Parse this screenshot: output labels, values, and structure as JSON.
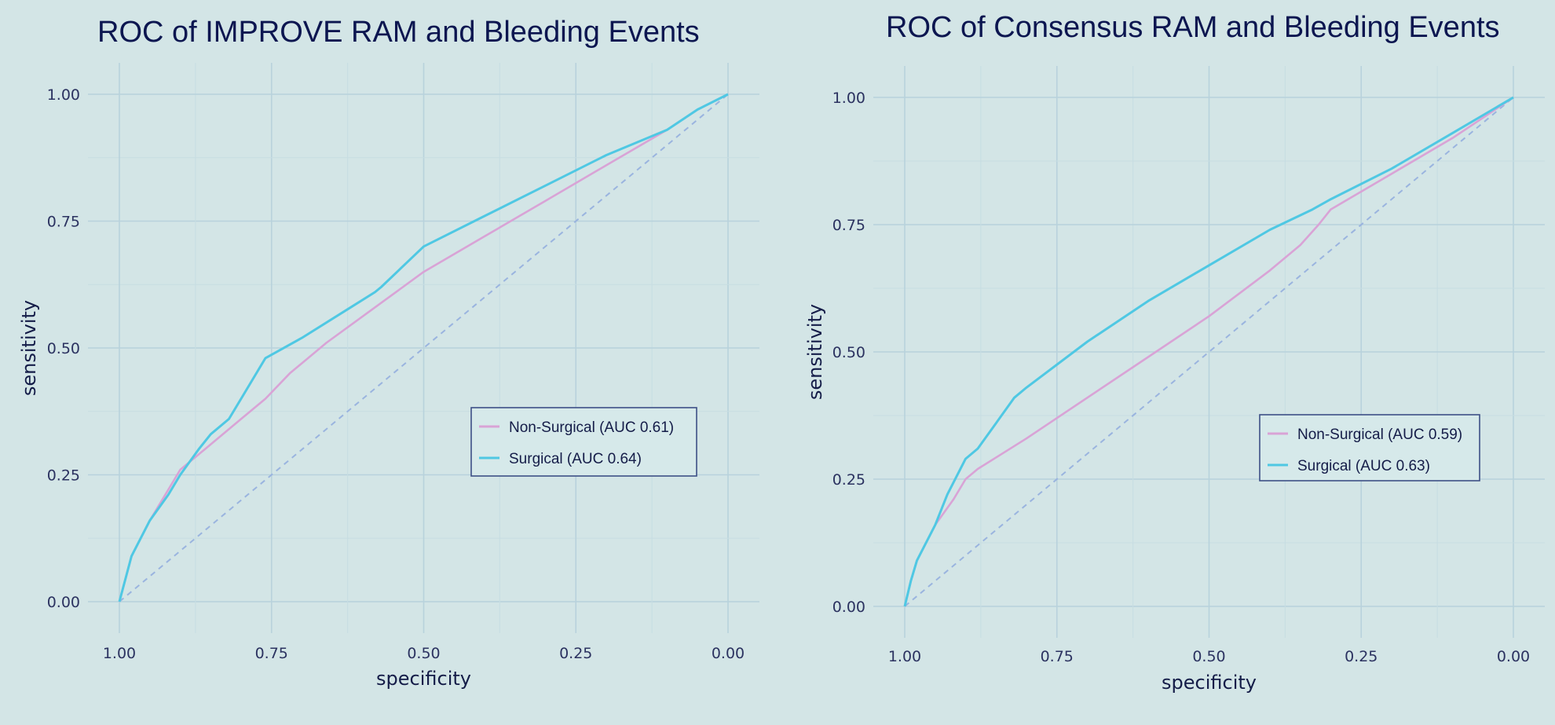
{
  "chart_data": [
    {
      "type": "line",
      "title": "ROC of IMPROVE RAM and Bleeding Events",
      "xlabel": "specificity",
      "ylabel": "sensitivity",
      "xlim": [
        1.0,
        0.0
      ],
      "ylim": [
        0.0,
        1.0
      ],
      "x_ticks": [
        "1.00",
        "0.75",
        "0.50",
        "0.25",
        "0.00"
      ],
      "y_ticks": [
        "0.00",
        "0.25",
        "0.50",
        "0.75",
        "1.00"
      ],
      "grid": true,
      "legend_position": "bottom-right",
      "reference_line": "diagonal (dashed)",
      "series": [
        {
          "name": "Non-Surgical (AUC 0.61)",
          "color": "#d9a3d6",
          "x": [
            1.0,
            0.98,
            0.95,
            0.92,
            0.9,
            0.86,
            0.8,
            0.76,
            0.72,
            0.66,
            0.58,
            0.5,
            0.4,
            0.3,
            0.2,
            0.1,
            0.05,
            0.0
          ],
          "y": [
            0.0,
            0.09,
            0.16,
            0.22,
            0.26,
            0.3,
            0.36,
            0.4,
            0.45,
            0.51,
            0.58,
            0.65,
            0.72,
            0.79,
            0.86,
            0.93,
            0.97,
            1.0
          ]
        },
        {
          "name": "Surgical (AUC 0.64)",
          "color": "#4fc8e3",
          "x": [
            1.0,
            0.98,
            0.95,
            0.92,
            0.9,
            0.87,
            0.85,
            0.82,
            0.8,
            0.76,
            0.7,
            0.62,
            0.58,
            0.57,
            0.5,
            0.4,
            0.3,
            0.2,
            0.1,
            0.05,
            0.0
          ],
          "y": [
            0.0,
            0.09,
            0.16,
            0.21,
            0.25,
            0.3,
            0.33,
            0.36,
            0.4,
            0.48,
            0.52,
            0.58,
            0.61,
            0.62,
            0.7,
            0.76,
            0.82,
            0.88,
            0.93,
            0.97,
            1.0
          ]
        }
      ]
    },
    {
      "type": "line",
      "title": "ROC of Consensus RAM and Bleeding Events",
      "xlabel": "specificity",
      "ylabel": "sensitivity",
      "xlim": [
        1.0,
        0.0
      ],
      "ylim": [
        0.0,
        1.0
      ],
      "x_ticks": [
        "1.00",
        "0.75",
        "0.50",
        "0.25",
        "0.00"
      ],
      "y_ticks": [
        "0.00",
        "0.25",
        "0.50",
        "0.75",
        "1.00"
      ],
      "grid": true,
      "legend_position": "bottom-right",
      "reference_line": "diagonal (dashed)",
      "series": [
        {
          "name": "Non-Surgical (AUC 0.59)",
          "color": "#d9a3d6",
          "x": [
            1.0,
            0.99,
            0.98,
            0.95,
            0.92,
            0.9,
            0.88,
            0.8,
            0.7,
            0.6,
            0.5,
            0.4,
            0.35,
            0.32,
            0.3,
            0.2,
            0.1,
            0.0
          ],
          "y": [
            0.0,
            0.05,
            0.09,
            0.16,
            0.21,
            0.25,
            0.27,
            0.33,
            0.41,
            0.49,
            0.57,
            0.66,
            0.71,
            0.75,
            0.78,
            0.85,
            0.92,
            1.0
          ]
        },
        {
          "name": "Surgical (AUC 0.63)",
          "color": "#4fc8e3",
          "x": [
            1.0,
            0.99,
            0.98,
            0.95,
            0.93,
            0.9,
            0.88,
            0.85,
            0.82,
            0.8,
            0.7,
            0.6,
            0.5,
            0.4,
            0.33,
            0.3,
            0.2,
            0.1,
            0.0
          ],
          "y": [
            0.0,
            0.05,
            0.09,
            0.16,
            0.22,
            0.29,
            0.31,
            0.36,
            0.41,
            0.43,
            0.52,
            0.6,
            0.67,
            0.74,
            0.78,
            0.8,
            0.86,
            0.93,
            1.0
          ]
        }
      ]
    }
  ]
}
